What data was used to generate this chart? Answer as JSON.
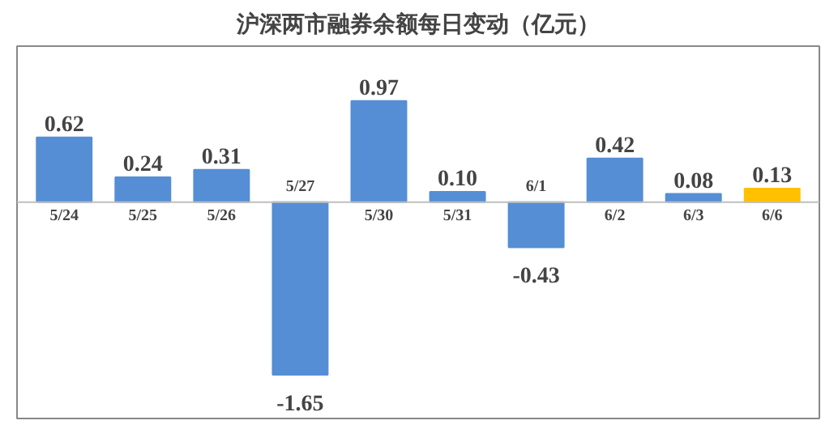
{
  "chart_data": {
    "type": "bar",
    "title": "沪深两市融券余额每日变动（亿元）",
    "categories": [
      "5/24",
      "5/25",
      "5/26",
      "5/27",
      "5/30",
      "5/31",
      "6/1",
      "6/2",
      "6/3",
      "6/6"
    ],
    "values": [
      0.62,
      0.24,
      0.31,
      -1.65,
      0.97,
      0.1,
      -0.43,
      0.42,
      0.08,
      0.13
    ],
    "colors": [
      "#558ed5",
      "#558ed5",
      "#558ed5",
      "#558ed5",
      "#558ed5",
      "#558ed5",
      "#558ed5",
      "#558ed5",
      "#558ed5",
      "#ffc000"
    ],
    "value_labels": [
      "0.62",
      "0.24",
      "0.31",
      "-1.65",
      "0.97",
      "0.10",
      "-0.43",
      "0.42",
      "0.08",
      "0.13"
    ]
  }
}
